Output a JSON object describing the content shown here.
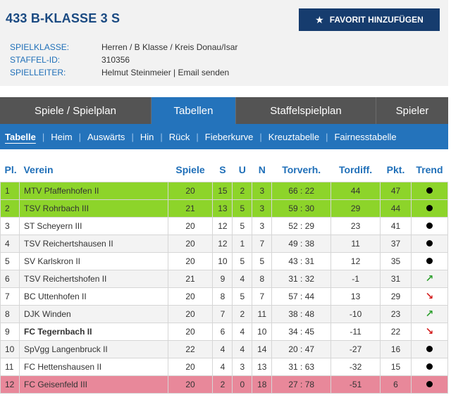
{
  "header": {
    "title": "433 B-KLASSE 3 S",
    "favorite_label": "FAVORIT HINZUFÜGEN",
    "favorite_icon": "star-icon",
    "meta": [
      {
        "label": "SPIELKLASSE:",
        "value": "Herren / B Klasse / Kreis Donau/Isar"
      },
      {
        "label": "STAFFEL-ID:",
        "value": "310356"
      },
      {
        "label": "SPIELLEITER:",
        "value": "Helmut Steinmeier",
        "link": "Email senden"
      }
    ]
  },
  "tabs": [
    "Spiele / Spielplan",
    "Tabellen",
    "Staffelspielplan",
    "Spieler"
  ],
  "active_tab": "Tabellen",
  "subnav": [
    "Tabelle",
    "Heim",
    "Auswärts",
    "Hin",
    "Rück",
    "Fieberkurve",
    "Kreuztabelle",
    "Fairnesstabelle"
  ],
  "colors": {
    "accent": "#2473bb",
    "dark_nav": "#545454",
    "promotion": "#8dd42a",
    "relegation": "#e8889a"
  },
  "table": {
    "headers": [
      "Pl.",
      "Verein",
      "Spiele",
      "S",
      "U",
      "N",
      "Torverh.",
      "Tordiff.",
      "Pkt.",
      "Trend"
    ],
    "rows": [
      {
        "pl": "1",
        "team": "MTV Pfaffenhofen II",
        "spiele": "20",
        "s": "15",
        "u": "2",
        "n": "3",
        "tore": "66 : 22",
        "diff": "44",
        "pkt": "47",
        "trend": "dot"
      },
      {
        "pl": "2",
        "team": "TSV Rohrbach III",
        "spiele": "21",
        "s": "13",
        "u": "5",
        "n": "3",
        "tore": "59 : 30",
        "diff": "29",
        "pkt": "44",
        "trend": "dot"
      },
      {
        "pl": "3",
        "team": "ST Scheyern III",
        "spiele": "20",
        "s": "12",
        "u": "5",
        "n": "3",
        "tore": "52 : 29",
        "diff": "23",
        "pkt": "41",
        "trend": "dot"
      },
      {
        "pl": "4",
        "team": "TSV Reichertshausen II",
        "spiele": "20",
        "s": "12",
        "u": "1",
        "n": "7",
        "tore": "49 : 38",
        "diff": "11",
        "pkt": "37",
        "trend": "dot"
      },
      {
        "pl": "5",
        "team": "SV Karlskron II",
        "spiele": "20",
        "s": "10",
        "u": "5",
        "n": "5",
        "tore": "43 : 31",
        "diff": "12",
        "pkt": "35",
        "trend": "dot"
      },
      {
        "pl": "6",
        "team": "TSV Reichertshofen II",
        "spiele": "21",
        "s": "9",
        "u": "4",
        "n": "8",
        "tore": "31 : 32",
        "diff": "-1",
        "pkt": "31",
        "trend": "up"
      },
      {
        "pl": "7",
        "team": "BC Uttenhofen II",
        "spiele": "20",
        "s": "8",
        "u": "5",
        "n": "7",
        "tore": "57 : 44",
        "diff": "13",
        "pkt": "29",
        "trend": "down"
      },
      {
        "pl": "8",
        "team": "DJK Winden",
        "spiele": "20",
        "s": "7",
        "u": "2",
        "n": "11",
        "tore": "38 : 48",
        "diff": "-10",
        "pkt": "23",
        "trend": "up"
      },
      {
        "pl": "9",
        "team": "FC Tegernbach II",
        "spiele": "20",
        "s": "6",
        "u": "4",
        "n": "10",
        "tore": "34 : 45",
        "diff": "-11",
        "pkt": "22",
        "trend": "down",
        "bold": true
      },
      {
        "pl": "10",
        "team": "SpVgg Langenbruck II",
        "spiele": "22",
        "s": "4",
        "u": "4",
        "n": "14",
        "tore": "20 : 47",
        "diff": "-27",
        "pkt": "16",
        "trend": "dot"
      },
      {
        "pl": "11",
        "team": "FC Hettenshausen II",
        "spiele": "20",
        "s": "4",
        "u": "3",
        "n": "13",
        "tore": "31 : 63",
        "diff": "-32",
        "pkt": "15",
        "trend": "dot"
      },
      {
        "pl": "12",
        "team": "FC Geisenfeld III",
        "spiele": "20",
        "s": "2",
        "u": "0",
        "n": "18",
        "tore": "27 : 78",
        "diff": "-51",
        "pkt": "6",
        "trend": "dot"
      }
    ]
  }
}
